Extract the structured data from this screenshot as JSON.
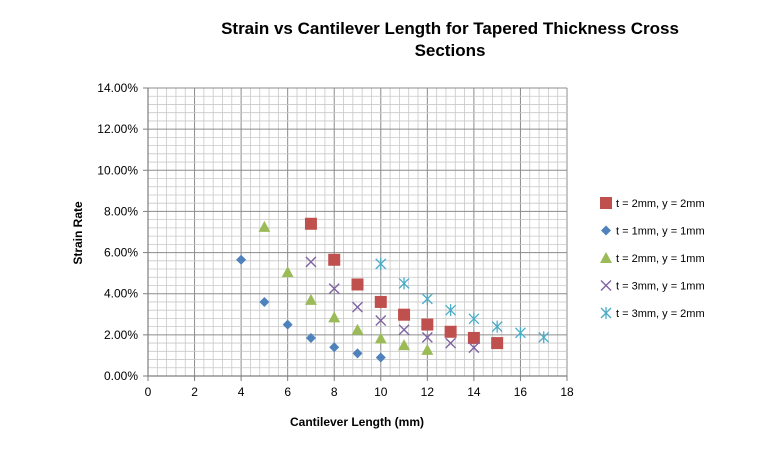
{
  "chart_data": {
    "type": "scatter",
    "title": "Strain vs Cantilever Length for Tapered Thickness Cross Sections",
    "title_lines": [
      "Strain vs Cantilever Length for Tapered Thickness Cross",
      "Sections"
    ],
    "xlabel": "Cantilever Length (mm)",
    "ylabel": "Strain Rate",
    "xlim": [
      0,
      18
    ],
    "ylim": [
      0,
      0.14
    ],
    "x_ticks": [
      0,
      2,
      4,
      6,
      8,
      10,
      12,
      14,
      16,
      18
    ],
    "x_tick_labels": [
      "0",
      "2",
      "4",
      "6",
      "8",
      "10",
      "12",
      "14",
      "16",
      "18"
    ],
    "y_ticks": [
      0,
      0.02,
      0.04,
      0.06,
      0.08,
      0.1,
      0.12,
      0.14
    ],
    "y_tick_labels": [
      "0.00%",
      "2.00%",
      "4.00%",
      "6.00%",
      "8.00%",
      "10.00%",
      "12.00%",
      "14.00%"
    ],
    "grid": true,
    "legend_position": "right",
    "series": [
      {
        "name": "t = 2mm, y = 2mm",
        "marker": "square",
        "color": "#C0504D",
        "x": [
          7,
          8,
          9,
          10,
          11,
          12,
          13,
          14,
          15
        ],
        "y": [
          0.074,
          0.0565,
          0.0445,
          0.036,
          0.0298,
          0.025,
          0.0215,
          0.0185,
          0.016
        ]
      },
      {
        "name": "t = 1mm, y = 1mm",
        "marker": "diamond",
        "color": "#4F81BD",
        "x": [
          4,
          5,
          6,
          7,
          8,
          9,
          10
        ],
        "y": [
          0.0565,
          0.036,
          0.025,
          0.0185,
          0.014,
          0.011,
          0.009
        ]
      },
      {
        "name": "t = 2mm, y = 1mm",
        "marker": "triangle",
        "color": "#9BBB59",
        "x": [
          5,
          6,
          7,
          8,
          9,
          10,
          11,
          12
        ],
        "y": [
          0.0725,
          0.0505,
          0.037,
          0.0285,
          0.0225,
          0.0182,
          0.015,
          0.0127
        ]
      },
      {
        "name": "t = 3mm, y = 1mm",
        "marker": "x",
        "color": "#8064A2",
        "x": [
          7,
          8,
          9,
          10,
          11,
          12,
          13,
          14
        ],
        "y": [
          0.0555,
          0.0425,
          0.0335,
          0.027,
          0.0225,
          0.0188,
          0.016,
          0.0138
        ]
      },
      {
        "name": "t = 3mm, y = 2mm",
        "marker": "star",
        "color": "#4BACC6",
        "x": [
          10,
          11,
          12,
          13,
          14,
          15,
          16,
          17
        ],
        "y": [
          0.0545,
          0.045,
          0.0375,
          0.032,
          0.0278,
          0.024,
          0.021,
          0.0188
        ]
      }
    ]
  }
}
